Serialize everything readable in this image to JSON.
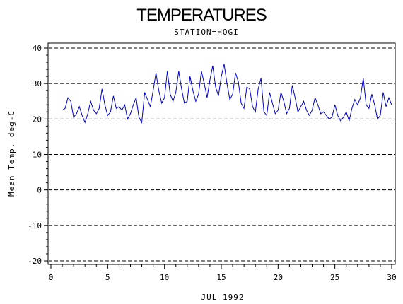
{
  "chart_data": {
    "type": "line",
    "title": "TEMPERATURES",
    "subtitle": "STATION=HOGI",
    "xlabel": "JUL 1992",
    "ylabel": "Mean Temp. deg-C",
    "xlim": [
      0,
      30
    ],
    "ylim": [
      -20,
      40
    ],
    "x_ticks": [
      0,
      5,
      10,
      15,
      20,
      25,
      30
    ],
    "y_ticks": [
      -20,
      -10,
      0,
      10,
      20,
      30,
      40
    ],
    "grid": "dashed horizontal lines at y ticks",
    "series": [
      {
        "color": "#0000cc",
        "x": [
          1.0,
          1.25,
          1.5,
          1.75,
          2.0,
          2.25,
          2.5,
          2.75,
          3.0,
          3.25,
          3.5,
          3.75,
          4.0,
          4.25,
          4.5,
          4.75,
          5.0,
          5.25,
          5.5,
          5.75,
          6.0,
          6.25,
          6.5,
          6.75,
          7.0,
          7.25,
          7.5,
          7.75,
          8.0,
          8.25,
          8.5,
          8.75,
          9.0,
          9.25,
          9.5,
          9.75,
          10.0,
          10.25,
          10.5,
          10.75,
          11.0,
          11.25,
          11.5,
          11.75,
          12.0,
          12.25,
          12.5,
          12.75,
          13.0,
          13.25,
          13.5,
          13.75,
          14.0,
          14.25,
          14.5,
          14.75,
          15.0,
          15.25,
          15.5,
          15.75,
          16.0,
          16.25,
          16.5,
          16.75,
          17.0,
          17.25,
          17.5,
          17.75,
          18.0,
          18.25,
          18.5,
          18.75,
          19.0,
          19.25,
          19.5,
          19.75,
          20.0,
          20.25,
          20.5,
          20.75,
          21.0,
          21.25,
          21.5,
          21.75,
          22.0,
          22.25,
          22.5,
          22.75,
          23.0,
          23.25,
          23.5,
          23.75,
          24.0,
          24.25,
          24.5,
          24.75,
          25.0,
          25.25,
          25.5,
          25.75,
          26.0,
          26.25,
          26.5,
          26.75,
          27.0,
          27.25,
          27.5,
          27.75,
          28.0,
          28.25,
          28.5,
          28.75,
          29.0,
          29.25,
          29.5,
          29.75,
          30.0
        ],
        "values": [
          22.5,
          23.0,
          26.0,
          25.0,
          20.5,
          21.5,
          23.5,
          21.0,
          19.0,
          21.5,
          25.0,
          22.5,
          21.5,
          23.0,
          28.5,
          24.0,
          21.0,
          22.0,
          26.5,
          23.0,
          23.5,
          22.5,
          24.0,
          20.0,
          21.5,
          24.0,
          26.0,
          20.5,
          19.0,
          27.5,
          25.5,
          23.5,
          28.0,
          33.0,
          28.0,
          24.5,
          26.0,
          33.5,
          27.0,
          25.0,
          27.5,
          33.5,
          28.5,
          24.5,
          25.0,
          32.0,
          28.0,
          25.0,
          27.0,
          33.5,
          30.0,
          26.0,
          31.0,
          35.0,
          29.0,
          26.5,
          32.0,
          35.5,
          30.0,
          25.5,
          27.0,
          33.0,
          30.5,
          24.5,
          23.0,
          29.0,
          28.5,
          23.5,
          22.0,
          28.5,
          31.5,
          22.0,
          21.0,
          27.5,
          24.5,
          21.5,
          22.5,
          27.5,
          25.0,
          21.5,
          23.0,
          29.5,
          26.0,
          22.0,
          23.5,
          25.0,
          22.5,
          21.0,
          22.5,
          26.0,
          24.0,
          21.5,
          22.0,
          21.0,
          20.0,
          20.5,
          24.0,
          21.0,
          19.5,
          20.5,
          22.0,
          19.5,
          23.0,
          25.5,
          24.0,
          26.0,
          31.5,
          24.0,
          23.0,
          27.0,
          24.0,
          20.0,
          21.0,
          27.5,
          23.5,
          26.0,
          24.0
        ]
      }
    ]
  }
}
